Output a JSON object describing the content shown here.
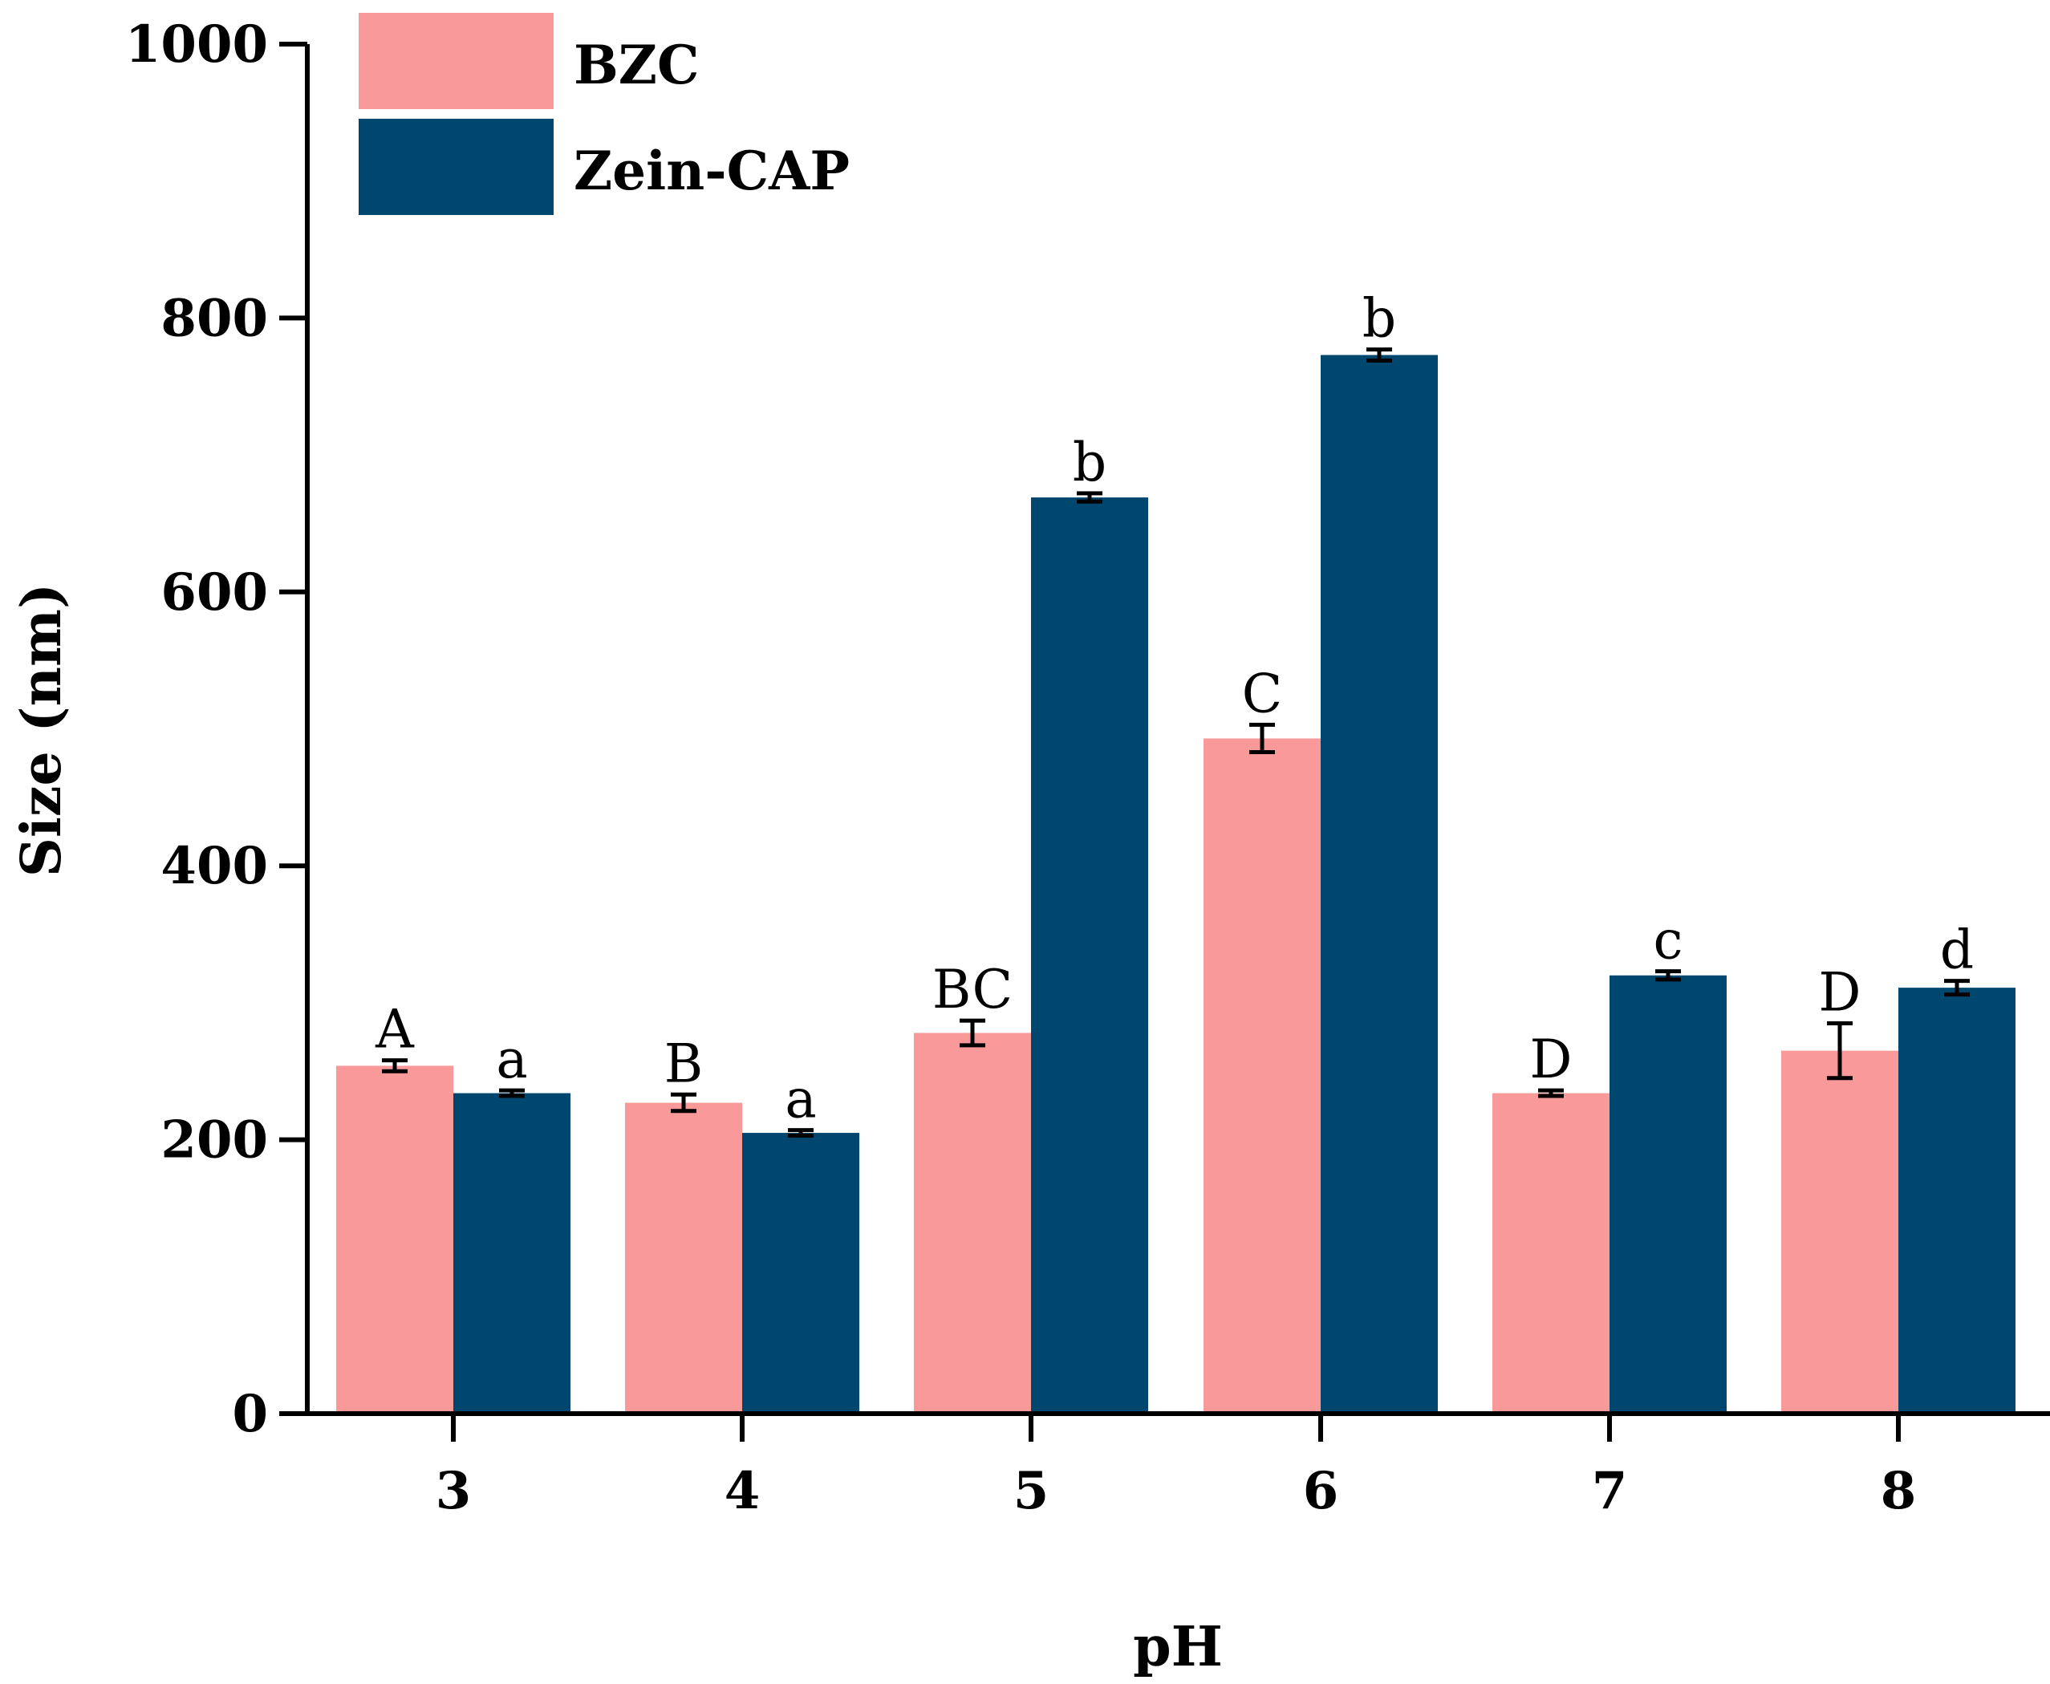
{
  "chart_data": {
    "type": "bar",
    "title": "",
    "xlabel": "pH",
    "ylabel": "Size (nm)",
    "ylim": [
      0,
      1000
    ],
    "yticks": [
      "0",
      "200",
      "400",
      "600",
      "800",
      "1000"
    ],
    "categories": [
      "3",
      "4",
      "5",
      "6",
      "7",
      "8"
    ],
    "legend_position": "top-left",
    "series": [
      {
        "name": "BZC",
        "color": "#fa9999",
        "values": [
          254,
          227,
          278,
          493,
          234,
          265
        ],
        "errors": [
          4,
          6,
          9,
          10,
          2,
          20
        ],
        "labels": [
          "A",
          "B",
          "BC",
          "C",
          "D",
          "D"
        ]
      },
      {
        "name": "Zein-CAP",
        "color": "#00476f",
        "values": [
          234,
          205,
          669,
          773,
          320,
          311
        ],
        "errors": [
          2,
          2,
          3,
          4,
          3,
          5
        ],
        "labels": [
          "a",
          "a",
          "b",
          "b",
          "c",
          "d"
        ]
      }
    ]
  }
}
